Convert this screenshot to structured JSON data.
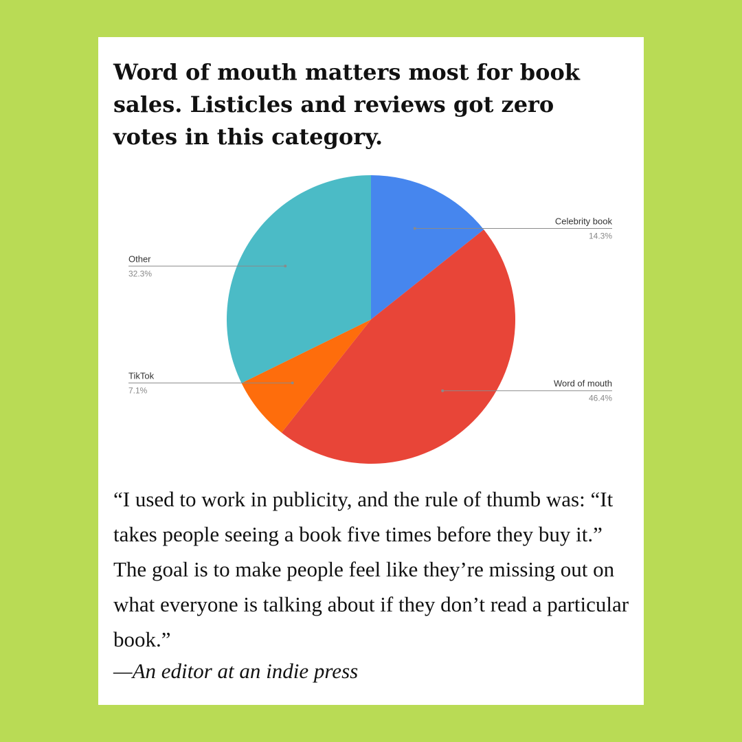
{
  "headline": "Word of mouth matters most for book sales. Listicles and reviews got zero votes in this category.",
  "chart_data": {
    "type": "pie",
    "slices": [
      {
        "label": "Celebrity book",
        "value": 14.3,
        "display": "14.3%",
        "color": "#4686ee",
        "label_side": "right"
      },
      {
        "label": "Word of mouth",
        "value": 46.4,
        "display": "46.4%",
        "color": "#e84538",
        "label_side": "right"
      },
      {
        "label": "TikTok",
        "value": 7.1,
        "display": "7.1%",
        "color": "#fe6d0c",
        "label_side": "left"
      },
      {
        "label": "Other",
        "value": 32.3,
        "display": "32.3%",
        "color": "#4bbbc6",
        "label_side": "left"
      }
    ],
    "start": "12 o'clock",
    "direction": "clockwise"
  },
  "quote": "“I used to work in publicity, and the rule of thumb was: “It takes people seeing a book five times before they buy it.” The goal is to make people feel like they’re missing out on what everyone is talking about if they don’t read a particular book.”",
  "attribution": "—An editor at an indie press",
  "colors": {
    "background": "#b9db55",
    "card": "#ffffff"
  }
}
